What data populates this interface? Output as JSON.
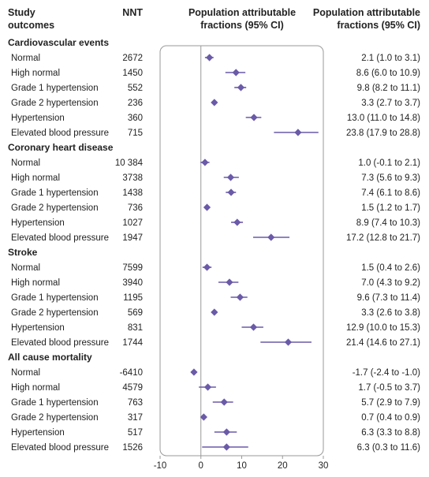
{
  "headers": {
    "outcomes_line1": "Study",
    "outcomes_line2": "outcomes",
    "nnt": "NNT",
    "plot_line1": "Population attributable",
    "plot_line2": "fractions (95% CI)",
    "paf_line1": "Population attributable",
    "paf_line2": "fractions (95% CI)"
  },
  "colors": {
    "marker": "#6a5aa8",
    "ci_line": "#6a5aa8",
    "panel_border": "#999999",
    "zero_line": "#999999"
  },
  "chart_data": {
    "type": "forest",
    "xlim": [
      -10,
      30
    ],
    "xticks": [
      -10,
      0,
      10,
      20,
      30
    ],
    "xtick_labels": [
      "-10",
      "0",
      "10",
      "20",
      "30"
    ],
    "sections": [
      {
        "name": "Cardiovascular events",
        "rows": [
          {
            "label": "Normal",
            "nnt": "2672",
            "paf": 2.1,
            "lo": 1.0,
            "hi": 3.1,
            "text": "2.1 (1.0 to 3.1)"
          },
          {
            "label": "High normal",
            "nnt": "1450",
            "paf": 8.6,
            "lo": 6.0,
            "hi": 10.9,
            "text": "8.6 (6.0 to 10.9)"
          },
          {
            "label": "Grade 1 hypertension",
            "nnt": "552",
            "paf": 9.8,
            "lo": 8.2,
            "hi": 11.1,
            "text": "9.8 (8.2 to 11.1)"
          },
          {
            "label": "Grade 2 hypertension",
            "nnt": "236",
            "paf": 3.3,
            "lo": 2.7,
            "hi": 3.7,
            "text": "3.3 (2.7 to 3.7)"
          },
          {
            "label": "Hypertension",
            "nnt": "360",
            "paf": 13.0,
            "lo": 11.0,
            "hi": 14.8,
            "text": "13.0 (11.0 to 14.8)"
          },
          {
            "label": "Elevated blood pressure",
            "nnt": "715",
            "paf": 23.8,
            "lo": 17.9,
            "hi": 28.8,
            "text": "23.8 (17.9 to 28.8)"
          }
        ]
      },
      {
        "name": "Coronary heart disease",
        "rows": [
          {
            "label": "Normal",
            "nnt": "10 384",
            "paf": 1.0,
            "lo": -0.1,
            "hi": 2.1,
            "text": "1.0 (-0.1 to 2.1)"
          },
          {
            "label": "High normal",
            "nnt": "3738",
            "paf": 7.3,
            "lo": 5.6,
            "hi": 9.3,
            "text": "7.3 (5.6 to 9.3)"
          },
          {
            "label": "Grade 1 hypertension",
            "nnt": "1438",
            "paf": 7.4,
            "lo": 6.1,
            "hi": 8.6,
            "text": "7.4 (6.1 to 8.6)"
          },
          {
            "label": "Grade 2 hypertension",
            "nnt": "736",
            "paf": 1.5,
            "lo": 1.2,
            "hi": 1.7,
            "text": "1.5 (1.2 to 1.7)"
          },
          {
            "label": "Hypertension",
            "nnt": "1027",
            "paf": 8.9,
            "lo": 7.4,
            "hi": 10.3,
            "text": "8.9 (7.4 to 10.3)"
          },
          {
            "label": "Elevated blood pressure",
            "nnt": "1947",
            "paf": 17.2,
            "lo": 12.8,
            "hi": 21.7,
            "text": "17.2 (12.8 to 21.7)"
          }
        ]
      },
      {
        "name": "Stroke",
        "rows": [
          {
            "label": "Normal",
            "nnt": "7599",
            "paf": 1.5,
            "lo": 0.4,
            "hi": 2.6,
            "text": "1.5 (0.4 to 2.6)"
          },
          {
            "label": "High normal",
            "nnt": "3940",
            "paf": 7.0,
            "lo": 4.3,
            "hi": 9.2,
            "text": "7.0 (4.3 to 9.2)"
          },
          {
            "label": "Grade 1 hypertension",
            "nnt": "1195",
            "paf": 9.6,
            "lo": 7.3,
            "hi": 11.4,
            "text": "9.6 (7.3 to 11.4)"
          },
          {
            "label": "Grade 2 hypertension",
            "nnt": "569",
            "paf": 3.3,
            "lo": 2.6,
            "hi": 3.8,
            "text": "3.3 (2.6 to 3.8)"
          },
          {
            "label": "Hypertension",
            "nnt": "831",
            "paf": 12.9,
            "lo": 10.0,
            "hi": 15.3,
            "text": "12.9 (10.0 to 15.3)"
          },
          {
            "label": "Elevated blood pressure",
            "nnt": "1744",
            "paf": 21.4,
            "lo": 14.6,
            "hi": 27.1,
            "text": "21.4 (14.6 to 27.1)"
          }
        ]
      },
      {
        "name": "All cause mortality",
        "rows": [
          {
            "label": "Normal",
            "nnt": "-6410",
            "paf": -1.7,
            "lo": -2.4,
            "hi": -1.0,
            "text": "-1.7 (-2.4 to -1.0)"
          },
          {
            "label": "High normal",
            "nnt": "4579",
            "paf": 1.7,
            "lo": -0.5,
            "hi": 3.7,
            "text": "1.7 (-0.5 to 3.7)"
          },
          {
            "label": "Grade 1 hypertension",
            "nnt": "763",
            "paf": 5.7,
            "lo": 2.9,
            "hi": 7.9,
            "text": "5.7 (2.9 to 7.9)"
          },
          {
            "label": "Grade 2 hypertension",
            "nnt": "317",
            "paf": 0.7,
            "lo": 0.4,
            "hi": 0.9,
            "text": "0.7 (0.4 to 0.9)"
          },
          {
            "label": "Hypertension",
            "nnt": "517",
            "paf": 6.3,
            "lo": 3.3,
            "hi": 8.8,
            "text": "6.3 (3.3 to 8.8)"
          },
          {
            "label": "Elevated blood pressure",
            "nnt": "1526",
            "paf": 6.3,
            "lo": 0.3,
            "hi": 11.6,
            "text": "6.3 (0.3 to 11.6)"
          }
        ]
      }
    ]
  }
}
